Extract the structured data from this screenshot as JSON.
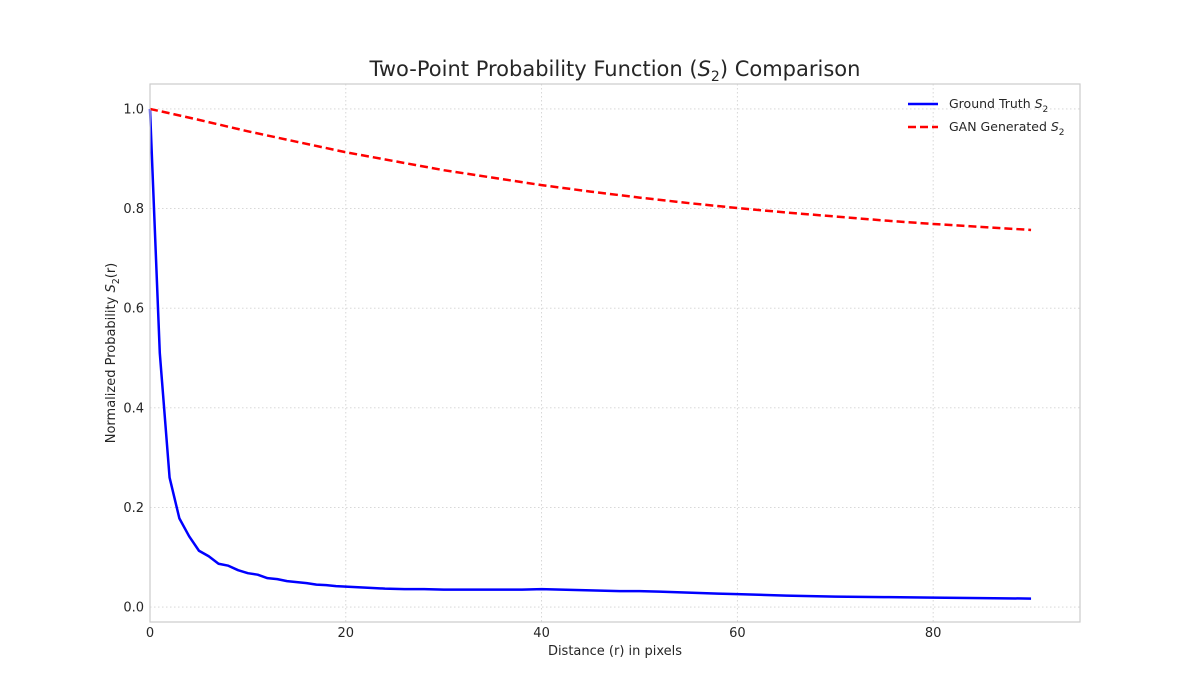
{
  "chart_data": {
    "type": "line",
    "title": "Two-Point Probability Function (S_2) Comparison",
    "title_parts": {
      "before": "Two-Point Probability Function (",
      "symbol": "S",
      "subscript": "2",
      "after": ") Comparison"
    },
    "xlabel": "Distance (r) in pixels",
    "ylabel_parts": {
      "before": "Normalized Probability ",
      "symbol": "S",
      "subscript": "2",
      "after": "(r)"
    },
    "xlim": [
      0,
      95
    ],
    "ylim": [
      -0.03,
      1.05
    ],
    "xticks": [
      0,
      20,
      40,
      60,
      80
    ],
    "xtick_labels": [
      "0",
      "20",
      "40",
      "60",
      "80"
    ],
    "yticks": [
      0.0,
      0.2,
      0.4,
      0.6,
      0.8,
      1.0
    ],
    "ytick_labels": [
      "0.0",
      "0.2",
      "0.4",
      "0.6",
      "0.8",
      "1.0"
    ],
    "grid": true,
    "legend_position": "top-right",
    "series": [
      {
        "name": "Ground Truth S_2",
        "legend": {
          "before": "Ground Truth ",
          "symbol": "S",
          "subscript": "2"
        },
        "color": "#0000ff",
        "style": "solid",
        "x": [
          0,
          1,
          2,
          3,
          4,
          5,
          6,
          7,
          8,
          9,
          10,
          11,
          12,
          13,
          14,
          15,
          16,
          17,
          18,
          19,
          20,
          22,
          24,
          26,
          28,
          30,
          32,
          34,
          36,
          38,
          40,
          42,
          44,
          46,
          48,
          50,
          52,
          55,
          58,
          60,
          65,
          70,
          75,
          80,
          85,
          90
        ],
        "y": [
          1.0,
          0.51,
          0.26,
          0.178,
          0.142,
          0.113,
          0.102,
          0.087,
          0.083,
          0.074,
          0.068,
          0.065,
          0.058,
          0.056,
          0.052,
          0.05,
          0.048,
          0.045,
          0.044,
          0.042,
          0.041,
          0.039,
          0.037,
          0.036,
          0.036,
          0.035,
          0.035,
          0.035,
          0.035,
          0.035,
          0.036,
          0.035,
          0.034,
          0.033,
          0.032,
          0.032,
          0.031,
          0.029,
          0.027,
          0.026,
          0.023,
          0.021,
          0.02,
          0.019,
          0.018,
          0.017
        ]
      },
      {
        "name": "GAN Generated S_2",
        "legend": {
          "before": "GAN Generated ",
          "symbol": "S",
          "subscript": "2"
        },
        "color": "#ff0000",
        "style": "dashed",
        "x": [
          0,
          5,
          10,
          15,
          20,
          25,
          30,
          35,
          40,
          45,
          50,
          55,
          60,
          65,
          70,
          75,
          80,
          85,
          90
        ],
        "y": [
          1.0,
          0.978,
          0.955,
          0.934,
          0.913,
          0.895,
          0.877,
          0.862,
          0.847,
          0.834,
          0.822,
          0.811,
          0.801,
          0.792,
          0.784,
          0.776,
          0.769,
          0.763,
          0.757
        ]
      }
    ]
  }
}
